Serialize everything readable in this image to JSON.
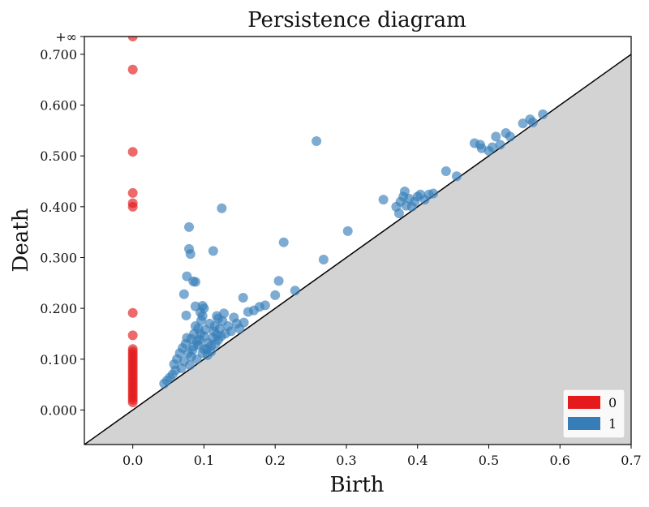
{
  "chart_data": {
    "type": "scatter",
    "title": "Persistence diagram",
    "xlabel": "Birth",
    "ylabel": "Death",
    "xlim": [
      -0.068,
      0.7
    ],
    "ylim": [
      -0.068,
      0.735
    ],
    "x_ticks": [
      {
        "value": 0.0,
        "label": "0.0"
      },
      {
        "value": 0.1,
        "label": "0.1"
      },
      {
        "value": 0.2,
        "label": "0.2"
      },
      {
        "value": 0.3,
        "label": "0.3"
      },
      {
        "value": 0.4,
        "label": "0.4"
      },
      {
        "value": 0.5,
        "label": "0.5"
      },
      {
        "value": 0.6,
        "label": "0.6"
      },
      {
        "value": 0.7,
        "label": "0.7"
      }
    ],
    "y_ticks": [
      {
        "value": 0.0,
        "label": "0.000"
      },
      {
        "value": 0.1,
        "label": "0.100"
      },
      {
        "value": 0.2,
        "label": "0.200"
      },
      {
        "value": 0.3,
        "label": "0.300"
      },
      {
        "value": 0.4,
        "label": "0.400"
      },
      {
        "value": 0.5,
        "label": "0.500"
      },
      {
        "value": 0.6,
        "label": "0.600"
      },
      {
        "value": 0.7,
        "label": "0.700"
      }
    ],
    "infinity_line": {
      "value": 0.735,
      "label": "+∞"
    },
    "diagonal": true,
    "grid": false,
    "legend_position": "bottom-right",
    "series": [
      {
        "name": "0",
        "color": "#e41a1c",
        "points": [
          [
            0.0,
            "inf"
          ],
          [
            0.0,
            0.67
          ],
          [
            0.0,
            0.508
          ],
          [
            0.0,
            0.427
          ],
          [
            0.0,
            0.407
          ],
          [
            0.0,
            0.4
          ],
          [
            0.0,
            0.191
          ],
          [
            0.0,
            0.147
          ],
          [
            0.0,
            0.12
          ],
          [
            0.0,
            0.115
          ],
          [
            0.0,
            0.11
          ],
          [
            0.0,
            0.105
          ],
          [
            0.0,
            0.1
          ],
          [
            0.0,
            0.095
          ],
          [
            0.0,
            0.09
          ],
          [
            0.0,
            0.085
          ],
          [
            0.0,
            0.08
          ],
          [
            0.0,
            0.075
          ],
          [
            0.0,
            0.07
          ],
          [
            0.0,
            0.065
          ],
          [
            0.0,
            0.06
          ],
          [
            0.0,
            0.055
          ],
          [
            0.0,
            0.05
          ],
          [
            0.0,
            0.045
          ],
          [
            0.0,
            0.04
          ],
          [
            0.0,
            0.035
          ],
          [
            0.0,
            0.03
          ],
          [
            0.0,
            0.025
          ],
          [
            0.0,
            0.02
          ],
          [
            0.0,
            0.015
          ]
        ]
      },
      {
        "name": "1",
        "color": "#377eb8",
        "points": [
          [
            0.044,
            0.052
          ],
          [
            0.048,
            0.058
          ],
          [
            0.052,
            0.064
          ],
          [
            0.056,
            0.07
          ],
          [
            0.06,
            0.078
          ],
          [
            0.058,
            0.09
          ],
          [
            0.062,
            0.1
          ],
          [
            0.066,
            0.112
          ],
          [
            0.07,
            0.122
          ],
          [
            0.068,
            0.082
          ],
          [
            0.072,
            0.096
          ],
          [
            0.074,
            0.13
          ],
          [
            0.076,
            0.142
          ],
          [
            0.08,
            0.088
          ],
          [
            0.082,
            0.105
          ],
          [
            0.084,
            0.118
          ],
          [
            0.086,
            0.15
          ],
          [
            0.088,
            0.165
          ],
          [
            0.09,
            0.1
          ],
          [
            0.092,
            0.128
          ],
          [
            0.094,
            0.138
          ],
          [
            0.096,
            0.176
          ],
          [
            0.098,
            0.112
          ],
          [
            0.1,
            0.145
          ],
          [
            0.102,
            0.158
          ],
          [
            0.104,
            0.12
          ],
          [
            0.106,
            0.132
          ],
          [
            0.108,
            0.17
          ],
          [
            0.11,
            0.126
          ],
          [
            0.112,
            0.142
          ],
          [
            0.114,
            0.155
          ],
          [
            0.116,
            0.13
          ],
          [
            0.118,
            0.148
          ],
          [
            0.12,
            0.138
          ],
          [
            0.122,
            0.16
          ],
          [
            0.124,
            0.145
          ],
          [
            0.126,
            0.175
          ],
          [
            0.128,
            0.19
          ],
          [
            0.13,
            0.15
          ],
          [
            0.134,
            0.165
          ],
          [
            0.138,
            0.155
          ],
          [
            0.142,
            0.182
          ],
          [
            0.146,
            0.17
          ],
          [
            0.15,
            0.16
          ],
          [
            0.156,
            0.172
          ],
          [
            0.085,
            0.125
          ],
          [
            0.09,
            0.135
          ],
          [
            0.095,
            0.15
          ],
          [
            0.1,
            0.12
          ],
          [
            0.105,
            0.108
          ],
          [
            0.092,
            0.16
          ],
          [
            0.098,
            0.185
          ],
          [
            0.078,
            0.112
          ],
          [
            0.082,
            0.14
          ],
          [
            0.11,
            0.115
          ],
          [
            0.115,
            0.165
          ],
          [
            0.12,
            0.18
          ],
          [
            0.088,
            0.204
          ],
          [
            0.075,
            0.186
          ],
          [
            0.072,
            0.228
          ],
          [
            0.076,
            0.263
          ],
          [
            0.085,
            0.253
          ],
          [
            0.088,
            0.252
          ],
          [
            0.079,
            0.317
          ],
          [
            0.081,
            0.307
          ],
          [
            0.079,
            0.36
          ],
          [
            0.113,
            0.313
          ],
          [
            0.125,
            0.397
          ],
          [
            0.118,
            0.185
          ],
          [
            0.1,
            0.2
          ],
          [
            0.095,
            0.192
          ],
          [
            0.098,
            0.205
          ],
          [
            0.155,
            0.221
          ],
          [
            0.162,
            0.193
          ],
          [
            0.17,
            0.196
          ],
          [
            0.178,
            0.203
          ],
          [
            0.186,
            0.206
          ],
          [
            0.2,
            0.226
          ],
          [
            0.205,
            0.254
          ],
          [
            0.212,
            0.33
          ],
          [
            0.228,
            0.235
          ],
          [
            0.258,
            0.529
          ],
          [
            0.268,
            0.296
          ],
          [
            0.302,
            0.352
          ],
          [
            0.352,
            0.414
          ],
          [
            0.37,
            0.4
          ],
          [
            0.374,
            0.387
          ],
          [
            0.376,
            0.41
          ],
          [
            0.38,
            0.42
          ],
          [
            0.382,
            0.43
          ],
          [
            0.384,
            0.402
          ],
          [
            0.388,
            0.416
          ],
          [
            0.392,
            0.4
          ],
          [
            0.396,
            0.41
          ],
          [
            0.4,
            0.42
          ],
          [
            0.404,
            0.424
          ],
          [
            0.41,
            0.414
          ],
          [
            0.416,
            0.424
          ],
          [
            0.422,
            0.426
          ],
          [
            0.44,
            0.47
          ],
          [
            0.455,
            0.46
          ],
          [
            0.48,
            0.525
          ],
          [
            0.488,
            0.522
          ],
          [
            0.49,
            0.515
          ],
          [
            0.5,
            0.51
          ],
          [
            0.505,
            0.517
          ],
          [
            0.51,
            0.538
          ],
          [
            0.516,
            0.522
          ],
          [
            0.524,
            0.545
          ],
          [
            0.53,
            0.538
          ],
          [
            0.548,
            0.564
          ],
          [
            0.558,
            0.572
          ],
          [
            0.562,
            0.566
          ],
          [
            0.576,
            0.582
          ]
        ]
      }
    ]
  }
}
